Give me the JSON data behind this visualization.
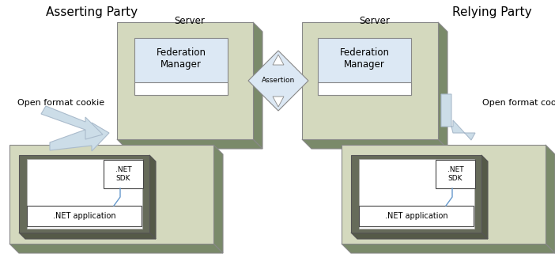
{
  "bg_color": "#ffffff",
  "box_face": "#d4d9be",
  "box_shadow": "#7a8a6a",
  "box_shadow2": "#8a9a78",
  "fm_face": "#dce8f4",
  "fm_border": "#888888",
  "diamond_face": "#dce8f4",
  "diamond_border": "#888888",
  "inner_frame_dark": "#666b5a",
  "inner_frame_darker": "#555a48",
  "connector_color": "#6699cc",
  "arrow_face": "#ccdde8",
  "arrow_edge": "#aabbcc",
  "title_font": 11,
  "label_font": 8.5,
  "small_font": 8,
  "asserting_title": "Asserting Party",
  "relying_title": "Relying Party",
  "server_label": "Server",
  "fm_label": "Federation\nManager",
  "assertion_label": "Assertion",
  "sdk_label": ".NET\nSDK",
  "app_label": ".NET application",
  "cookie_label": "Open format cookie"
}
